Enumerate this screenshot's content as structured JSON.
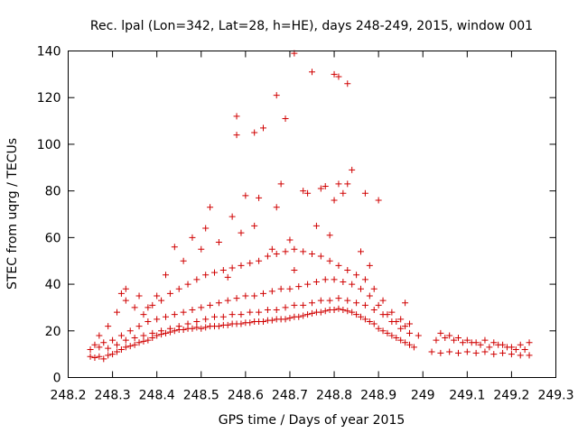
{
  "chart_data": {
    "type": "scatter",
    "title": "Rec. lpal (Lon=342, Lat=28, h=HE), days 248-249, 2015, window 001",
    "xlabel": "GPS time / Days of year 2015",
    "ylabel": "STEC from uqrg / TECUs",
    "xlim": [
      248.2,
      249.3
    ],
    "ylim": [
      0,
      140
    ],
    "xticks": [
      248.2,
      248.3,
      248.4,
      248.5,
      248.6,
      248.7,
      248.8,
      248.9,
      249,
      249.1,
      249.2,
      249.3
    ],
    "xtick_labels": [
      "248.2",
      "248.3",
      "248.4",
      "248.5",
      "248.6",
      "248.7",
      "248.8",
      "248.9",
      "249",
      "249.1",
      "249.2",
      "249.3"
    ],
    "yticks": [
      0,
      20,
      40,
      60,
      80,
      100,
      120,
      140
    ],
    "ytick_labels": [
      "0",
      "20",
      "40",
      "60",
      "80",
      "100",
      "120",
      "140"
    ],
    "grid": false,
    "legend": "none",
    "marker": "plus",
    "color": "#d00000",
    "series": [
      {
        "points": [
          [
            248.25,
            9
          ],
          [
            248.26,
            8.5
          ],
          [
            248.27,
            9
          ],
          [
            248.28,
            8
          ],
          [
            248.29,
            9.5
          ],
          [
            248.3,
            10
          ],
          [
            248.31,
            11
          ],
          [
            248.32,
            12
          ],
          [
            248.33,
            13
          ],
          [
            248.34,
            13.5
          ],
          [
            248.35,
            14
          ],
          [
            248.36,
            15
          ],
          [
            248.37,
            15.5
          ],
          [
            248.38,
            16
          ],
          [
            248.39,
            17
          ],
          [
            248.4,
            18
          ],
          [
            248.41,
            18.5
          ],
          [
            248.42,
            19
          ],
          [
            248.43,
            19.5
          ],
          [
            248.44,
            20
          ],
          [
            248.45,
            20.5
          ],
          [
            248.46,
            20.5
          ],
          [
            248.47,
            21
          ],
          [
            248.48,
            21
          ],
          [
            248.49,
            21.5
          ],
          [
            248.5,
            21
          ],
          [
            248.51,
            21.5
          ],
          [
            248.52,
            22
          ],
          [
            248.53,
            22
          ],
          [
            248.54,
            22
          ],
          [
            248.55,
            22.5
          ],
          [
            248.56,
            22.5
          ],
          [
            248.57,
            23
          ],
          [
            248.58,
            23
          ],
          [
            248.59,
            23
          ],
          [
            248.6,
            23.5
          ],
          [
            248.61,
            23.5
          ],
          [
            248.62,
            24
          ],
          [
            248.63,
            24
          ],
          [
            248.64,
            24
          ],
          [
            248.65,
            24.5
          ],
          [
            248.66,
            24.5
          ],
          [
            248.67,
            25
          ],
          [
            248.68,
            25
          ],
          [
            248.69,
            25
          ],
          [
            248.7,
            25.5
          ],
          [
            248.71,
            26
          ],
          [
            248.72,
            26
          ],
          [
            248.73,
            26.5
          ],
          [
            248.74,
            27
          ],
          [
            248.75,
            27.5
          ],
          [
            248.76,
            28
          ],
          [
            248.77,
            28
          ],
          [
            248.78,
            28.5
          ],
          [
            248.79,
            29
          ],
          [
            248.8,
            29
          ],
          [
            248.81,
            29.5
          ],
          [
            248.82,
            29
          ],
          [
            248.83,
            28.5
          ],
          [
            248.84,
            28
          ],
          [
            248.85,
            27
          ],
          [
            248.86,
            26
          ],
          [
            248.87,
            25
          ],
          [
            248.88,
            24
          ],
          [
            248.89,
            23
          ],
          [
            248.9,
            21
          ],
          [
            248.91,
            20
          ],
          [
            248.92,
            19
          ],
          [
            248.93,
            18
          ],
          [
            248.94,
            17
          ],
          [
            248.95,
            16
          ],
          [
            248.96,
            15
          ],
          [
            248.97,
            14
          ],
          [
            248.98,
            13
          ],
          [
            249.02,
            11
          ],
          [
            249.04,
            10.5
          ],
          [
            249.06,
            11
          ],
          [
            249.08,
            10.5
          ],
          [
            249.1,
            11
          ],
          [
            249.12,
            10.5
          ],
          [
            249.14,
            11
          ],
          [
            249.16,
            10
          ],
          [
            249.18,
            10.5
          ],
          [
            249.2,
            10
          ],
          [
            249.22,
            9.5
          ],
          [
            249.24,
            9.5
          ],
          [
            248.25,
            12
          ],
          [
            248.27,
            13
          ],
          [
            248.29,
            12.5
          ],
          [
            248.31,
            14
          ],
          [
            248.33,
            16
          ],
          [
            248.35,
            17
          ],
          [
            248.37,
            18
          ],
          [
            248.39,
            19
          ],
          [
            248.41,
            20
          ],
          [
            248.43,
            21
          ],
          [
            248.45,
            22
          ],
          [
            248.47,
            23
          ],
          [
            248.49,
            24
          ],
          [
            248.51,
            25
          ],
          [
            248.53,
            26
          ],
          [
            248.55,
            26
          ],
          [
            248.57,
            27
          ],
          [
            248.59,
            27
          ],
          [
            248.61,
            28
          ],
          [
            248.63,
            28
          ],
          [
            248.65,
            29
          ],
          [
            248.67,
            29
          ],
          [
            248.69,
            30
          ],
          [
            248.71,
            31
          ],
          [
            248.73,
            31
          ],
          [
            248.75,
            32
          ],
          [
            248.77,
            33
          ],
          [
            248.79,
            33
          ],
          [
            248.81,
            34
          ],
          [
            248.83,
            33
          ],
          [
            248.85,
            32
          ],
          [
            248.87,
            31
          ],
          [
            248.89,
            29
          ],
          [
            248.91,
            27
          ],
          [
            248.93,
            24
          ],
          [
            248.95,
            21
          ],
          [
            248.97,
            19
          ],
          [
            248.99,
            18
          ],
          [
            249.03,
            16
          ],
          [
            249.05,
            17
          ],
          [
            249.07,
            16
          ],
          [
            249.09,
            15
          ],
          [
            249.11,
            15
          ],
          [
            249.13,
            14
          ],
          [
            249.15,
            13
          ],
          [
            249.17,
            14
          ],
          [
            249.19,
            13
          ],
          [
            249.21,
            12
          ],
          [
            249.23,
            12
          ],
          [
            248.26,
            14
          ],
          [
            248.28,
            15
          ],
          [
            248.3,
            16
          ],
          [
            248.32,
            18
          ],
          [
            248.34,
            20
          ],
          [
            248.36,
            22
          ],
          [
            248.38,
            24
          ],
          [
            248.4,
            25
          ],
          [
            248.42,
            26
          ],
          [
            248.44,
            27
          ],
          [
            248.46,
            28
          ],
          [
            248.48,
            29
          ],
          [
            248.5,
            30
          ],
          [
            248.52,
            31
          ],
          [
            248.54,
            32
          ],
          [
            248.56,
            33
          ],
          [
            248.58,
            34
          ],
          [
            248.6,
            35
          ],
          [
            248.62,
            35
          ],
          [
            248.64,
            36
          ],
          [
            248.66,
            37
          ],
          [
            248.68,
            38
          ],
          [
            248.7,
            38
          ],
          [
            248.72,
            39
          ],
          [
            248.74,
            40
          ],
          [
            248.76,
            41
          ],
          [
            248.78,
            42
          ],
          [
            248.8,
            42
          ],
          [
            248.82,
            41
          ],
          [
            248.84,
            40
          ],
          [
            248.86,
            38
          ],
          [
            248.88,
            35
          ],
          [
            248.9,
            31
          ],
          [
            248.92,
            27
          ],
          [
            248.94,
            24
          ],
          [
            248.96,
            22
          ],
          [
            249.04,
            19
          ],
          [
            249.06,
            18
          ],
          [
            249.08,
            17
          ],
          [
            249.1,
            16
          ],
          [
            249.12,
            15
          ],
          [
            249.14,
            16
          ],
          [
            249.16,
            15
          ],
          [
            249.18,
            14
          ],
          [
            249.2,
            13
          ],
          [
            249.22,
            14
          ],
          [
            249.24,
            15
          ],
          [
            248.27,
            18
          ],
          [
            248.29,
            22
          ],
          [
            248.31,
            28
          ],
          [
            248.33,
            33
          ],
          [
            248.35,
            30
          ],
          [
            248.37,
            27
          ],
          [
            248.39,
            31
          ],
          [
            248.41,
            33
          ],
          [
            248.43,
            36
          ],
          [
            248.45,
            38
          ],
          [
            248.47,
            40
          ],
          [
            248.49,
            42
          ],
          [
            248.51,
            44
          ],
          [
            248.53,
            45
          ],
          [
            248.55,
            46
          ],
          [
            248.57,
            47
          ],
          [
            248.59,
            48
          ],
          [
            248.61,
            49
          ],
          [
            248.63,
            50
          ],
          [
            248.65,
            52
          ],
          [
            248.67,
            53
          ],
          [
            248.69,
            54
          ],
          [
            248.71,
            55
          ],
          [
            248.73,
            54
          ],
          [
            248.75,
            53
          ],
          [
            248.77,
            52
          ],
          [
            248.79,
            50
          ],
          [
            248.81,
            48
          ],
          [
            248.83,
            46
          ],
          [
            248.85,
            44
          ],
          [
            248.87,
            42
          ],
          [
            248.89,
            38
          ],
          [
            248.91,
            33
          ],
          [
            248.93,
            28
          ],
          [
            248.95,
            25
          ],
          [
            248.97,
            23
          ],
          [
            248.32,
            36
          ],
          [
            248.33,
            38
          ],
          [
            248.36,
            35
          ],
          [
            248.38,
            30
          ],
          [
            248.4,
            35
          ],
          [
            248.42,
            44
          ],
          [
            248.44,
            56
          ],
          [
            248.46,
            50
          ],
          [
            248.48,
            60
          ],
          [
            248.5,
            55
          ],
          [
            248.51,
            64
          ],
          [
            248.52,
            73
          ],
          [
            248.54,
            58
          ],
          [
            248.56,
            43
          ],
          [
            248.57,
            69
          ],
          [
            248.59,
            62
          ],
          [
            248.6,
            78
          ],
          [
            248.62,
            65
          ],
          [
            248.63,
            77
          ],
          [
            248.66,
            55
          ],
          [
            248.67,
            73
          ],
          [
            248.68,
            83
          ],
          [
            248.7,
            59
          ],
          [
            248.71,
            46
          ],
          [
            248.73,
            80
          ],
          [
            248.74,
            79
          ],
          [
            248.76,
            65
          ],
          [
            248.77,
            81
          ],
          [
            248.78,
            82
          ],
          [
            248.79,
            61
          ],
          [
            248.8,
            76
          ],
          [
            248.81,
            83
          ],
          [
            248.82,
            79
          ],
          [
            248.83,
            83
          ],
          [
            248.84,
            89
          ],
          [
            248.86,
            54
          ],
          [
            248.87,
            79
          ],
          [
            248.88,
            48
          ],
          [
            248.9,
            76
          ],
          [
            248.96,
            32
          ],
          [
            248.58,
            112
          ],
          [
            248.58,
            104
          ],
          [
            248.62,
            105
          ],
          [
            248.64,
            107
          ],
          [
            248.67,
            121
          ],
          [
            248.69,
            111
          ],
          [
            248.71,
            139
          ],
          [
            248.75,
            131
          ],
          [
            248.8,
            130
          ],
          [
            248.81,
            129
          ],
          [
            248.83,
            126
          ]
        ]
      }
    ]
  }
}
